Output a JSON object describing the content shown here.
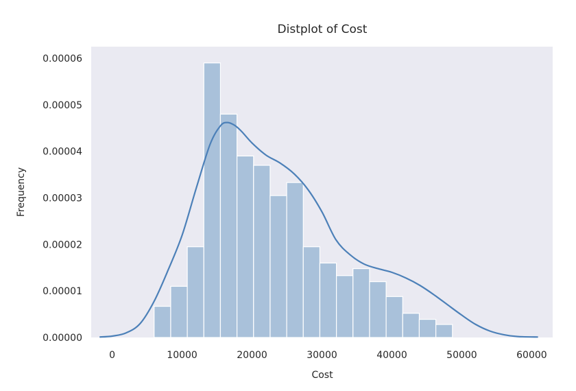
{
  "chart_data": {
    "type": "bar",
    "title": "Distplot of Cost",
    "xlabel": "Cost",
    "ylabel": "Frequency",
    "xlim": [
      -3000,
      63000
    ],
    "ylim": [
      0,
      6.25e-05
    ],
    "grid": false,
    "background": "#eaeaf2",
    "bar_color": "#a9c1da",
    "kde_color": "#4c80b8",
    "x_ticks": [
      0,
      10000,
      20000,
      30000,
      40000,
      50000,
      60000
    ],
    "x_tick_labels": [
      "0",
      "10000",
      "20000",
      "30000",
      "40000",
      "50000",
      "60000"
    ],
    "y_ticks": [
      0,
      1e-05,
      2e-05,
      3e-05,
      4e-05,
      5e-05,
      6e-05
    ],
    "y_tick_labels": [
      "0.00000",
      "0.00001",
      "0.00002",
      "0.00003",
      "0.00004",
      "0.00005",
      "0.00006"
    ],
    "histogram": {
      "bin_start": 6000,
      "bin_width": 2370,
      "values": [
        6.7e-06,
        1.1e-05,
        1.95e-05,
        5.9e-05,
        4.8e-05,
        3.9e-05,
        3.7e-05,
        3.05e-05,
        3.33e-05,
        1.95e-05,
        1.6e-05,
        1.33e-05,
        1.48e-05,
        1.2e-05,
        8.8e-06,
        5.2e-06,
        3.9e-06,
        2.8e-06
      ]
    },
    "kde": {
      "x": [
        -1800,
        0,
        2000,
        4000,
        6000,
        8000,
        10000,
        12000,
        14000,
        15500,
        16500,
        17500,
        18500,
        20000,
        22000,
        24000,
        26000,
        28000,
        30000,
        32000,
        34000,
        36000,
        38000,
        40000,
        42000,
        44000,
        46000,
        48000,
        50000,
        52000,
        54000,
        56000,
        58000,
        60900
      ],
      "y": [
        1e-07,
        3e-07,
        1e-06,
        3e-06,
        7.8e-06,
        1.45e-05,
        2.2e-05,
        3.2e-05,
        4.15e-05,
        4.55e-05,
        4.62e-05,
        4.56e-05,
        4.43e-05,
        4.18e-05,
        3.92e-05,
        3.75e-05,
        3.52e-05,
        3.18e-05,
        2.7e-05,
        2.1e-05,
        1.78e-05,
        1.58e-05,
        1.48e-05,
        1.4e-05,
        1.28e-05,
        1.12e-05,
        9.2e-06,
        7e-06,
        4.8e-06,
        2.8e-06,
        1.4e-06,
        6e-07,
        2e-07,
        1e-07
      ]
    }
  }
}
